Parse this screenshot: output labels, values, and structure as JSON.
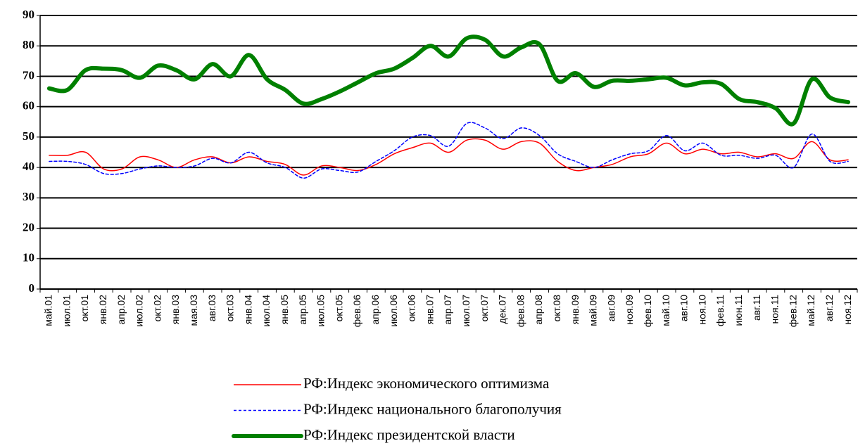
{
  "chart_data": {
    "type": "line",
    "categories": [
      "май.01",
      "июл.01",
      "окт.01",
      "янв.02",
      "апр.02",
      "июл.02",
      "окт.02",
      "янв.03",
      "мая.03",
      "авг.03",
      "окт.03",
      "янв.04",
      "июл.04",
      "янв.05",
      "апр.05",
      "июл.05",
      "окт.05",
      "фев.06",
      "апр.06",
      "июл.06",
      "окт.06",
      "янв.07",
      "апр.07",
      "июл.07",
      "окт.07",
      "дек.07",
      "фев.08",
      "апр.08",
      "окт.08",
      "янв.09",
      "май.09",
      "авг.09",
      "ноя.09",
      "фев.10",
      "май.10",
      "авг.10",
      "ноя.10",
      "фев.11",
      "июн.11",
      "авг.11",
      "ноя.11",
      "фев.12",
      "май.12",
      "авг.12",
      "ноя.12"
    ],
    "series": [
      {
        "name": "РФ:Индекс экономического оптимизма",
        "color": "#ff0000",
        "width": 1.5,
        "dash": "none",
        "values": [
          44,
          44,
          45,
          39.5,
          39.5,
          43.5,
          42.5,
          40,
          42.5,
          43.5,
          41.5,
          43.5,
          42,
          41,
          37.5,
          40.5,
          40,
          39,
          41,
          44.5,
          46.5,
          48,
          45,
          49,
          49,
          46,
          48.5,
          48,
          42,
          39,
          40,
          41,
          43.5,
          44.5,
          48,
          44.5,
          46,
          44.5,
          45,
          43.5,
          44.5,
          43,
          48.5,
          42.5,
          42.5
        ]
      },
      {
        "name": "РФ:Индекс национального благополучия",
        "color": "#0000ff",
        "width": 1.5,
        "dash": "4 3",
        "values": [
          42,
          42,
          41,
          38,
          38,
          39.5,
          40.5,
          40,
          40.5,
          43,
          41.5,
          45,
          41.5,
          40,
          36.5,
          39.5,
          39,
          38.5,
          42,
          45.5,
          50,
          50.5,
          47,
          54.5,
          53,
          49.5,
          53,
          50.5,
          44.5,
          42,
          40,
          42.5,
          44.5,
          45.5,
          50.5,
          45.5,
          48,
          44,
          44,
          43,
          44,
          40,
          51,
          42,
          42
        ]
      },
      {
        "name": "РФ:Индекс президентской власти",
        "color": "#008000",
        "width": 6,
        "dash": "none",
        "values": [
          66,
          65.5,
          72,
          72.5,
          72,
          69.5,
          73.5,
          72,
          69,
          74,
          70,
          77,
          69,
          65.5,
          61,
          62.5,
          65,
          68,
          71,
          72.5,
          76,
          80,
          76.5,
          82.5,
          82,
          76.5,
          79.5,
          80.5,
          68.5,
          71,
          66.5,
          68.5,
          68.5,
          69,
          69.5,
          67,
          68,
          67.5,
          62.5,
          61.5,
          59.5,
          54.5,
          69,
          63,
          61.5
        ]
      }
    ],
    "ylim": [
      0,
      90
    ],
    "yticks": [
      0,
      10,
      20,
      30,
      40,
      50,
      60,
      70,
      80,
      90
    ],
    "grid": true
  }
}
